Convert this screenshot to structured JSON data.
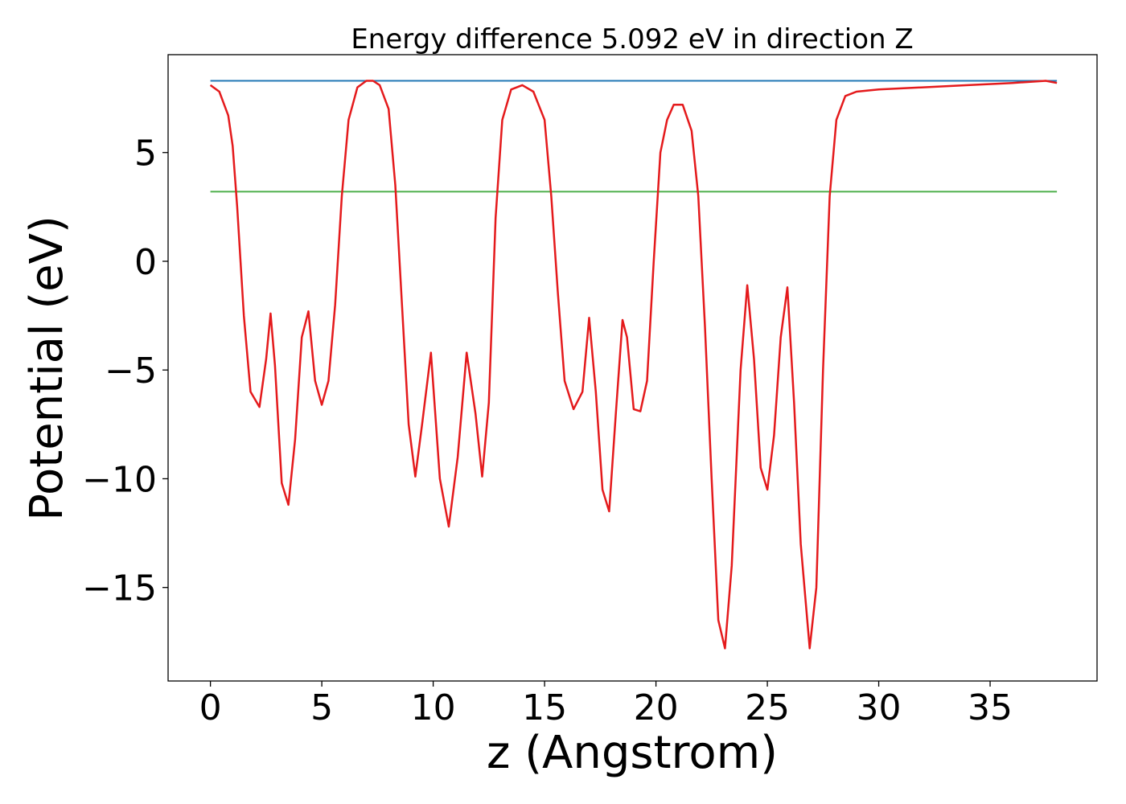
{
  "chart_data": {
    "type": "line",
    "title": "Energy difference 5.092 eV in direction Z",
    "xlabel": "z (Angstrom)",
    "ylabel": "Potential (eV)",
    "xlim": [
      -1.9,
      39.8
    ],
    "ylim": [
      -19.3,
      9.5
    ],
    "xticks": [
      0,
      5,
      10,
      15,
      20,
      25,
      30,
      35
    ],
    "xtick_labels": [
      "0",
      "5",
      "10",
      "15",
      "20",
      "25",
      "30",
      "35"
    ],
    "yticks": [
      5,
      0,
      -5,
      -10,
      -15
    ],
    "ytick_labels": [
      "5",
      "0",
      "−5",
      "−10",
      "−15"
    ],
    "grid": false,
    "series": [
      {
        "role": "planar-average-potential",
        "color": "#e41a1c",
        "x": [
          0.0,
          0.4,
          0.8,
          1.0,
          1.2,
          1.5,
          1.8,
          2.2,
          2.5,
          2.7,
          2.9,
          3.2,
          3.5,
          3.8,
          4.1,
          4.4,
          4.7,
          5.0,
          5.3,
          5.6,
          5.9,
          6.2,
          6.6,
          7.0,
          7.3,
          7.6,
          8.0,
          8.3,
          8.6,
          8.9,
          9.2,
          9.5,
          9.9,
          10.3,
          10.7,
          11.1,
          11.5,
          11.9,
          12.2,
          12.5,
          12.8,
          13.1,
          13.5,
          14.0,
          14.5,
          15.0,
          15.3,
          15.6,
          15.9,
          16.3,
          16.7,
          17.0,
          17.3,
          17.6,
          17.9,
          18.2,
          18.5,
          18.7,
          19.0,
          19.3,
          19.6,
          19.9,
          20.2,
          20.5,
          20.8,
          21.2,
          21.6,
          21.9,
          22.2,
          22.5,
          22.8,
          23.1,
          23.4,
          23.8,
          24.1,
          24.4,
          24.7,
          25.0,
          25.3,
          25.6,
          25.9,
          26.2,
          26.5,
          26.9,
          27.2,
          27.5,
          27.8,
          28.1,
          28.5,
          29.0,
          29.5,
          30.0,
          32.0,
          34.0,
          36.0,
          37.5,
          38.0
        ],
        "values": [
          8.1,
          7.8,
          6.7,
          5.3,
          2.5,
          -2.5,
          -6.0,
          -6.7,
          -4.5,
          -2.4,
          -4.8,
          -10.2,
          -11.2,
          -8.2,
          -3.5,
          -2.3,
          -5.5,
          -6.6,
          -5.5,
          -2.0,
          3.0,
          6.5,
          8.0,
          8.3,
          8.3,
          8.1,
          7.0,
          3.5,
          -2.0,
          -7.5,
          -9.9,
          -7.5,
          -4.2,
          -10.0,
          -12.2,
          -9.0,
          -4.2,
          -7.0,
          -9.9,
          -6.5,
          2.0,
          6.5,
          7.9,
          8.1,
          7.8,
          6.5,
          3.0,
          -1.5,
          -5.5,
          -6.8,
          -6.0,
          -2.6,
          -6.0,
          -10.5,
          -11.5,
          -7.0,
          -2.7,
          -3.5,
          -6.8,
          -6.9,
          -5.5,
          0.0,
          5.0,
          6.5,
          7.2,
          7.2,
          6.0,
          3.0,
          -3.0,
          -10.0,
          -16.5,
          -17.8,
          -14.0,
          -5.0,
          -1.1,
          -4.5,
          -9.5,
          -10.5,
          -8.0,
          -3.5,
          -1.2,
          -6.5,
          -13.0,
          -17.8,
          -15.0,
          -5.0,
          3.0,
          6.5,
          7.6,
          7.8,
          7.85,
          7.9,
          8.0,
          8.1,
          8.2,
          8.3,
          8.2
        ]
      },
      {
        "role": "reference-level-upper",
        "color": "#1f77b4",
        "x": [
          0.0,
          38.0
        ],
        "values": [
          8.3,
          8.3
        ]
      },
      {
        "role": "reference-level-lower",
        "color": "#4daf4a",
        "x": [
          0.0,
          38.0
        ],
        "values": [
          3.2,
          3.2
        ]
      }
    ]
  }
}
